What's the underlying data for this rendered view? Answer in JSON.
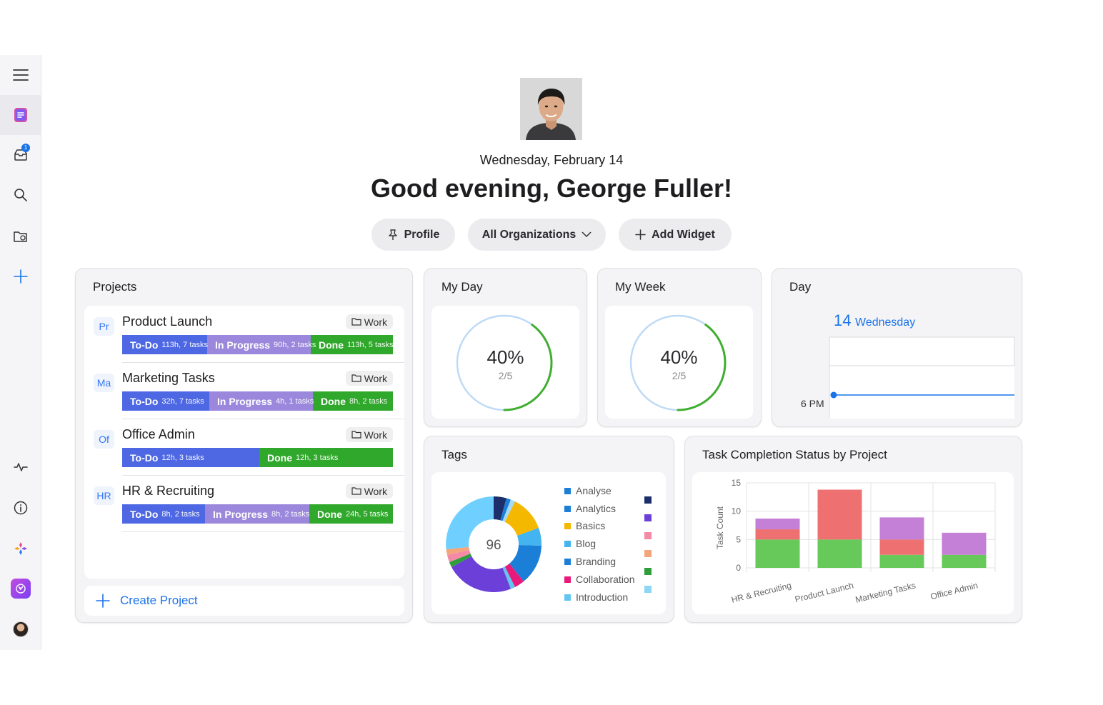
{
  "sidebar": {
    "items": [
      {
        "icon": "menu-icon"
      },
      {
        "icon": "dashboard-icon",
        "active": true
      },
      {
        "icon": "inbox-icon",
        "badge": "1"
      },
      {
        "icon": "search-icon"
      },
      {
        "icon": "folder-icon"
      },
      {
        "icon": "plus-icon"
      },
      {
        "icon": "activity-icon"
      },
      {
        "icon": "info-icon"
      },
      {
        "icon": "sparkle-icon"
      },
      {
        "icon": "app-icon"
      },
      {
        "icon": "user-avatar"
      }
    ]
  },
  "header": {
    "date": "Wednesday, February 14",
    "greeting": "Good evening, George Fuller!",
    "buttons": {
      "profile": "Profile",
      "organizations": "All Organizations",
      "add_widget": "Add Widget"
    }
  },
  "projects": {
    "title": "Projects",
    "create_label": "Create Project",
    "items": [
      {
        "abbr": "Pr",
        "name": "Product Launch",
        "tag": "Work",
        "todo": {
          "label": "To-Do",
          "sub": "113h, 7 tasks"
        },
        "progress": {
          "label": "In Progress",
          "sub": "90h, 2 tasks"
        },
        "done": {
          "label": "Done",
          "sub": "113h, 5 tasks"
        }
      },
      {
        "abbr": "Ma",
        "name": "Marketing Tasks",
        "tag": "Work",
        "todo": {
          "label": "To-Do",
          "sub": "32h, 7 tasks"
        },
        "progress": {
          "label": "In Progress",
          "sub": "4h, 1 tasks"
        },
        "done": {
          "label": "Done",
          "sub": "8h, 2 tasks"
        }
      },
      {
        "abbr": "Of",
        "name": "Office Admin",
        "tag": "Work",
        "todo": {
          "label": "To-Do",
          "sub": "12h, 3 tasks"
        },
        "done": {
          "label": "Done",
          "sub": "12h, 3 tasks"
        }
      },
      {
        "abbr": "HR",
        "name": "HR & Recruiting",
        "tag": "Work",
        "todo": {
          "label": "To-Do",
          "sub": "8h, 2 tasks"
        },
        "progress": {
          "label": "In Progress",
          "sub": "8h, 2 tasks"
        },
        "done": {
          "label": "Done",
          "sub": "24h, 5 tasks"
        }
      }
    ]
  },
  "my_day": {
    "title": "My Day",
    "percent_label": "40%",
    "fraction": "2/5",
    "progress": 0.4
  },
  "my_week": {
    "title": "My Week",
    "percent_label": "40%",
    "fraction": "2/5",
    "progress": 0.4
  },
  "day": {
    "title": "Day",
    "day_number": "14",
    "day_name": "Wednesday",
    "time_label": "6 PM"
  },
  "tags": {
    "title": "Tags",
    "total": "96",
    "legend": [
      {
        "name": "Analyse",
        "color": "#1b7fd8"
      },
      {
        "name": "Analytics",
        "color": "#1b7fd8"
      },
      {
        "name": "Basics",
        "color": "#f5b800"
      },
      {
        "name": "Blog",
        "color": "#43b4f0"
      },
      {
        "name": "Branding",
        "color": "#1b7fd8"
      },
      {
        "name": "Collaboration",
        "color": "#e8197a"
      },
      {
        "name": "Introduction",
        "color": "#63c5f2"
      }
    ],
    "legend_extra_colors": [
      "#1c2f6b",
      "#6b3fd8",
      "#f48aa6",
      "#f5a57a",
      "#2e9e3b",
      "#8ed6f5"
    ]
  },
  "task_chart": {
    "title": "Task Completion Status by Project",
    "chart_data": {
      "type": "bar",
      "stacked": true,
      "categories": [
        "HR & Recruiting",
        "Product Launch",
        "Marketing Tasks",
        "Office Admin"
      ],
      "ylabel": "Task Count",
      "ylim": [
        0,
        15
      ],
      "yticks": [
        0,
        5,
        10,
        15
      ],
      "grid": true,
      "series": [
        {
          "color": "#66c95a",
          "values": [
            5,
            5,
            2.3,
            2.3
          ]
        },
        {
          "color": "#ef7070",
          "values": [
            1.8,
            8.8,
            2.7,
            0
          ]
        },
        {
          "color": "#c47fd6",
          "values": [
            1.9,
            0,
            3.9,
            3.9
          ]
        }
      ]
    }
  }
}
